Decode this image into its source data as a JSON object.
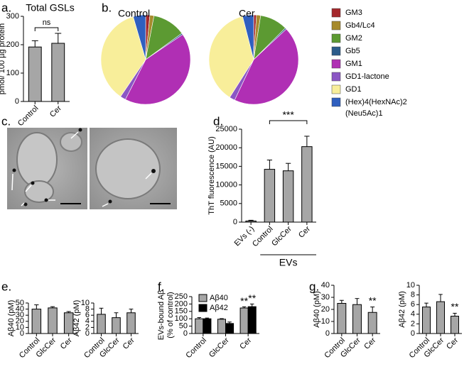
{
  "chart_data": [
    {
      "type": "bar",
      "panel": "a.",
      "title": "Total GSLs",
      "ylabel": "pmol/ 100 µg protein",
      "categories": [
        "Control",
        "Cer"
      ],
      "values": [
        192,
        205
      ],
      "errors": [
        22,
        35
      ],
      "ylim": [
        0,
        300
      ],
      "yticks": [
        0,
        100,
        200,
        300
      ],
      "color": "#a6a6a6",
      "annotation": "ns"
    },
    {
      "type": "pie",
      "panel": "b.",
      "labels": [
        "GM3",
        "Gb4/Lc4",
        "GM2",
        "Gb5",
        "GM1",
        "GD1-lactone",
        "GD1",
        "(Hex)4(HexNAc)2 (Neu5Ac)1"
      ],
      "colors": [
        "#a4282c",
        "#a68a2c",
        "#5c9a32",
        "#2b5c8a",
        "#b02fb4",
        "#8b56c4",
        "#f8ee9a",
        "#2f5fbf"
      ],
      "pies": [
        {
          "title": "Control",
          "values": [
            1.5,
            1.5,
            12,
            0.5,
            42,
            2,
            36,
            4.5
          ]
        },
        {
          "title": "Cer",
          "values": [
            1,
            1.5,
            10,
            0.5,
            44,
            2,
            37,
            4
          ]
        }
      ]
    },
    {
      "type": "image",
      "panel": "c."
    },
    {
      "type": "bar",
      "panel": "d.",
      "ylabel": "ThT fluorescence (AU)",
      "categories": [
        "EVs (-)",
        "Control",
        "GlcCer",
        "Cer"
      ],
      "values": [
        300,
        14200,
        13800,
        20300
      ],
      "errors": [
        200,
        2500,
        2000,
        2800
      ],
      "ylim": [
        0,
        25000
      ],
      "yticks": [
        0,
        5000,
        10000,
        15000,
        20000,
        25000
      ],
      "color": "#a6a6a6",
      "group_label": "EVs",
      "annotation": "***"
    },
    {
      "type": "bar",
      "panel": "e.",
      "ylabel": "Aβ40 (pM)",
      "categories": [
        "Control",
        "GlcCer",
        "Cer"
      ],
      "values": [
        40,
        42,
        34
      ],
      "errors": [
        7,
        2,
        2
      ],
      "ylim": [
        0,
        50
      ],
      "yticks": [
        0,
        10,
        20,
        30,
        40,
        50
      ],
      "color": "#a6a6a6"
    },
    {
      "type": "bar",
      "ylabel": "Aβ42 (pM)",
      "categories": [
        "Control",
        "GlcCer",
        "Cer"
      ],
      "values": [
        6.3,
        5.2,
        6.8
      ],
      "errors": [
        2,
        1.6,
        1.2
      ],
      "ylim": [
        0,
        10
      ],
      "yticks": [
        0,
        2,
        4,
        6,
        8,
        10
      ],
      "color": "#a6a6a6"
    },
    {
      "type": "grouped_bar",
      "panel": "f.",
      "ylabel": [
        "EVs-bound Aβ",
        "(% of control)"
      ],
      "categories": [
        "Control",
        "GlcCer",
        "Cer"
      ],
      "ylim": [
        0,
        250
      ],
      "yticks": [
        0,
        50,
        100,
        150,
        200,
        250
      ],
      "legend": "top-left",
      "series": [
        {
          "name": "Aβ40",
          "color": "#a6a6a6",
          "values": [
            100,
            97,
            173
          ],
          "errors": [
            8,
            4,
            8
          ],
          "annotation": "**"
        },
        {
          "name": "Aβ42",
          "color": "#000000",
          "values": [
            100,
            68,
            182
          ],
          "errors": [
            5,
            10,
            18
          ],
          "annotation": "**"
        }
      ]
    },
    {
      "type": "bar",
      "panel": "g.",
      "ylabel": "Aβ40 (pM)",
      "categories": [
        "Control",
        "GlcCer",
        "Cer"
      ],
      "values": [
        25,
        24,
        17.5
      ],
      "errors": [
        2.5,
        5,
        4.5
      ],
      "ylim": [
        0,
        40
      ],
      "yticks": [
        0,
        10,
        20,
        30,
        40
      ],
      "color": "#a6a6a6",
      "annotation": "**"
    },
    {
      "type": "bar",
      "ylabel": "Aβ42 (pM)",
      "categories": [
        "Control",
        "GlcCer",
        "Cer"
      ],
      "values": [
        5.5,
        6.6,
        3.6
      ],
      "errors": [
        0.8,
        1.5,
        0.6
      ],
      "ylim": [
        0,
        10
      ],
      "yticks": [
        0,
        2,
        4,
        6,
        8,
        10
      ],
      "color": "#a6a6a6",
      "annotation": "**"
    }
  ]
}
